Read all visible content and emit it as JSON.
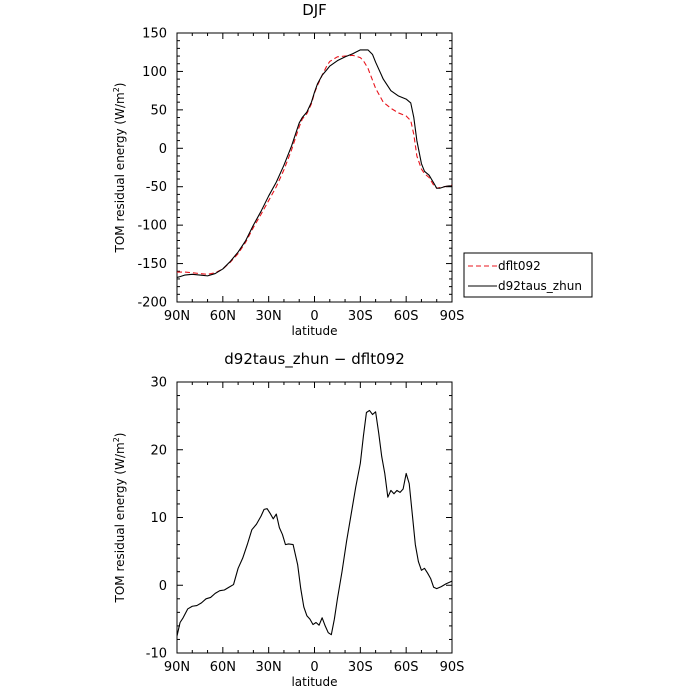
{
  "chart_data": [
    {
      "type": "line",
      "title": "DJF",
      "xlabel": "latitude",
      "ylabel_main": "TOM residual energy (W/m",
      "ylabel_sup": "2",
      "ylabel_end": ")",
      "xlim": [
        90,
        -90
      ],
      "ylim": [
        -200,
        150
      ],
      "xticks": [
        90,
        60,
        30,
        0,
        -30,
        -60,
        -90
      ],
      "xtick_labels": [
        "90N",
        "60N",
        "30N",
        "0",
        "30S",
        "60S",
        "90S"
      ],
      "yticks": [
        -200,
        -150,
        -100,
        -50,
        0,
        50,
        100,
        150
      ],
      "ytick_labels": [
        "-200",
        "-150",
        "-100",
        "-50",
        "0",
        "50",
        "100",
        "150"
      ],
      "legend_position": "outside-right",
      "series": [
        {
          "name": "dflt092",
          "color": "#e8141c",
          "style": "dashed",
          "x": [
            90,
            85,
            80,
            75,
            70,
            65,
            60,
            55,
            50,
            45,
            40,
            35,
            30,
            25,
            20,
            15,
            10,
            8,
            5,
            2,
            0,
            -2,
            -5,
            -8,
            -10,
            -15,
            -20,
            -25,
            -30,
            -32,
            -35,
            -40,
            -45,
            -50,
            -55,
            -60,
            -63,
            -65,
            -67,
            -70,
            -72,
            -75,
            -78,
            -80,
            -82,
            -85,
            -88,
            -90
          ],
          "y": [
            -161,
            -161,
            -162,
            -163,
            -164,
            -162,
            -157,
            -148,
            -137,
            -122,
            -103,
            -86,
            -68,
            -50,
            -28,
            -2,
            28,
            38,
            45,
            58,
            72,
            82,
            95,
            107,
            113,
            119,
            120,
            121,
            118,
            114,
            104,
            78,
            60,
            52,
            46,
            42,
            36,
            18,
            -10,
            -27,
            -33,
            -38,
            -48,
            -52,
            -51,
            -50,
            -49,
            -48
          ]
        },
        {
          "name": "d92taus_zhun",
          "color": "#000000",
          "style": "solid",
          "x": [
            90,
            88,
            85,
            80,
            75,
            70,
            65,
            60,
            55,
            50,
            45,
            40,
            35,
            30,
            25,
            20,
            15,
            10,
            8,
            5,
            2,
            0,
            -2,
            -5,
            -8,
            -10,
            -15,
            -20,
            -25,
            -30,
            -35,
            -38,
            -40,
            -45,
            -50,
            -55,
            -60,
            -63,
            -65,
            -67,
            -70,
            -72,
            -75,
            -78,
            -80,
            -82,
            -85,
            -88,
            -90
          ],
          "y": [
            -168,
            -167,
            -165,
            -164,
            -165,
            -166,
            -163,
            -157,
            -147,
            -135,
            -120,
            -100,
            -82,
            -62,
            -44,
            -22,
            3,
            33,
            40,
            47,
            60,
            73,
            84,
            95,
            102,
            107,
            114,
            119,
            123,
            128,
            128,
            122,
            112,
            90,
            75,
            68,
            64,
            59,
            40,
            10,
            -20,
            -30,
            -35,
            -45,
            -52,
            -52,
            -50,
            -49,
            -49
          ]
        }
      ]
    },
    {
      "type": "line",
      "title": "d92taus_zhun − dflt092",
      "xlabel": "latitude",
      "ylabel_main": "TOM residual energy (W/m",
      "ylabel_sup": "2",
      "ylabel_end": ")",
      "xlim": [
        90,
        -90
      ],
      "ylim": [
        -10,
        30
      ],
      "xticks": [
        90,
        60,
        30,
        0,
        -30,
        -60,
        -90
      ],
      "xtick_labels": [
        "90N",
        "60N",
        "30N",
        "0",
        "30S",
        "60S",
        "90S"
      ],
      "yticks": [
        -10,
        0,
        10,
        20,
        30
      ],
      "ytick_labels": [
        "-10",
        "0",
        "10",
        "20",
        "30"
      ],
      "series": [
        {
          "color": "#000000",
          "style": "solid",
          "x": [
            90,
            88,
            86,
            83,
            80,
            77,
            74,
            71,
            68,
            65,
            62,
            59,
            56,
            53,
            50,
            47,
            44,
            41,
            38,
            35,
            33,
            31,
            29,
            27,
            25,
            23,
            21,
            19,
            17,
            14,
            11,
            9,
            7,
            5,
            3,
            1,
            -1,
            -3,
            -5,
            -7,
            -9,
            -11,
            -13,
            -15,
            -18,
            -21,
            -24,
            -27,
            -30,
            -32,
            -34,
            -36,
            -38,
            -40,
            -42,
            -44,
            -46,
            -48,
            -50,
            -52,
            -54,
            -56,
            -58,
            -60,
            -62,
            -64,
            -66,
            -68,
            -70,
            -72,
            -74,
            -76,
            -78,
            -80,
            -83,
            -86,
            -90
          ],
          "y": [
            -7.5,
            -5.5,
            -4.8,
            -3.5,
            -3.1,
            -3.0,
            -2.6,
            -2.0,
            -1.8,
            -1.2,
            -0.8,
            -0.7,
            -0.3,
            0.1,
            2.5,
            4.0,
            6.0,
            8.2,
            9.0,
            10.2,
            11.2,
            11.3,
            10.6,
            9.8,
            10.5,
            8.5,
            7.5,
            6.0,
            6.1,
            6.0,
            3.0,
            -0.5,
            -3.2,
            -4.5,
            -5.0,
            -5.8,
            -5.5,
            -5.9,
            -4.8,
            -6.0,
            -7.0,
            -7.3,
            -5.0,
            -2.0,
            2.0,
            6.5,
            10.5,
            14.5,
            18.0,
            22.0,
            25.5,
            25.8,
            25.2,
            25.6,
            22.5,
            19.0,
            16.5,
            13.0,
            14.0,
            13.5,
            14.0,
            13.7,
            14.2,
            16.5,
            15.0,
            10.5,
            6.0,
            3.5,
            2.2,
            2.5,
            1.8,
            1.0,
            -0.3,
            -0.5,
            -0.2,
            0.2,
            0.6
          ]
        }
      ]
    }
  ]
}
